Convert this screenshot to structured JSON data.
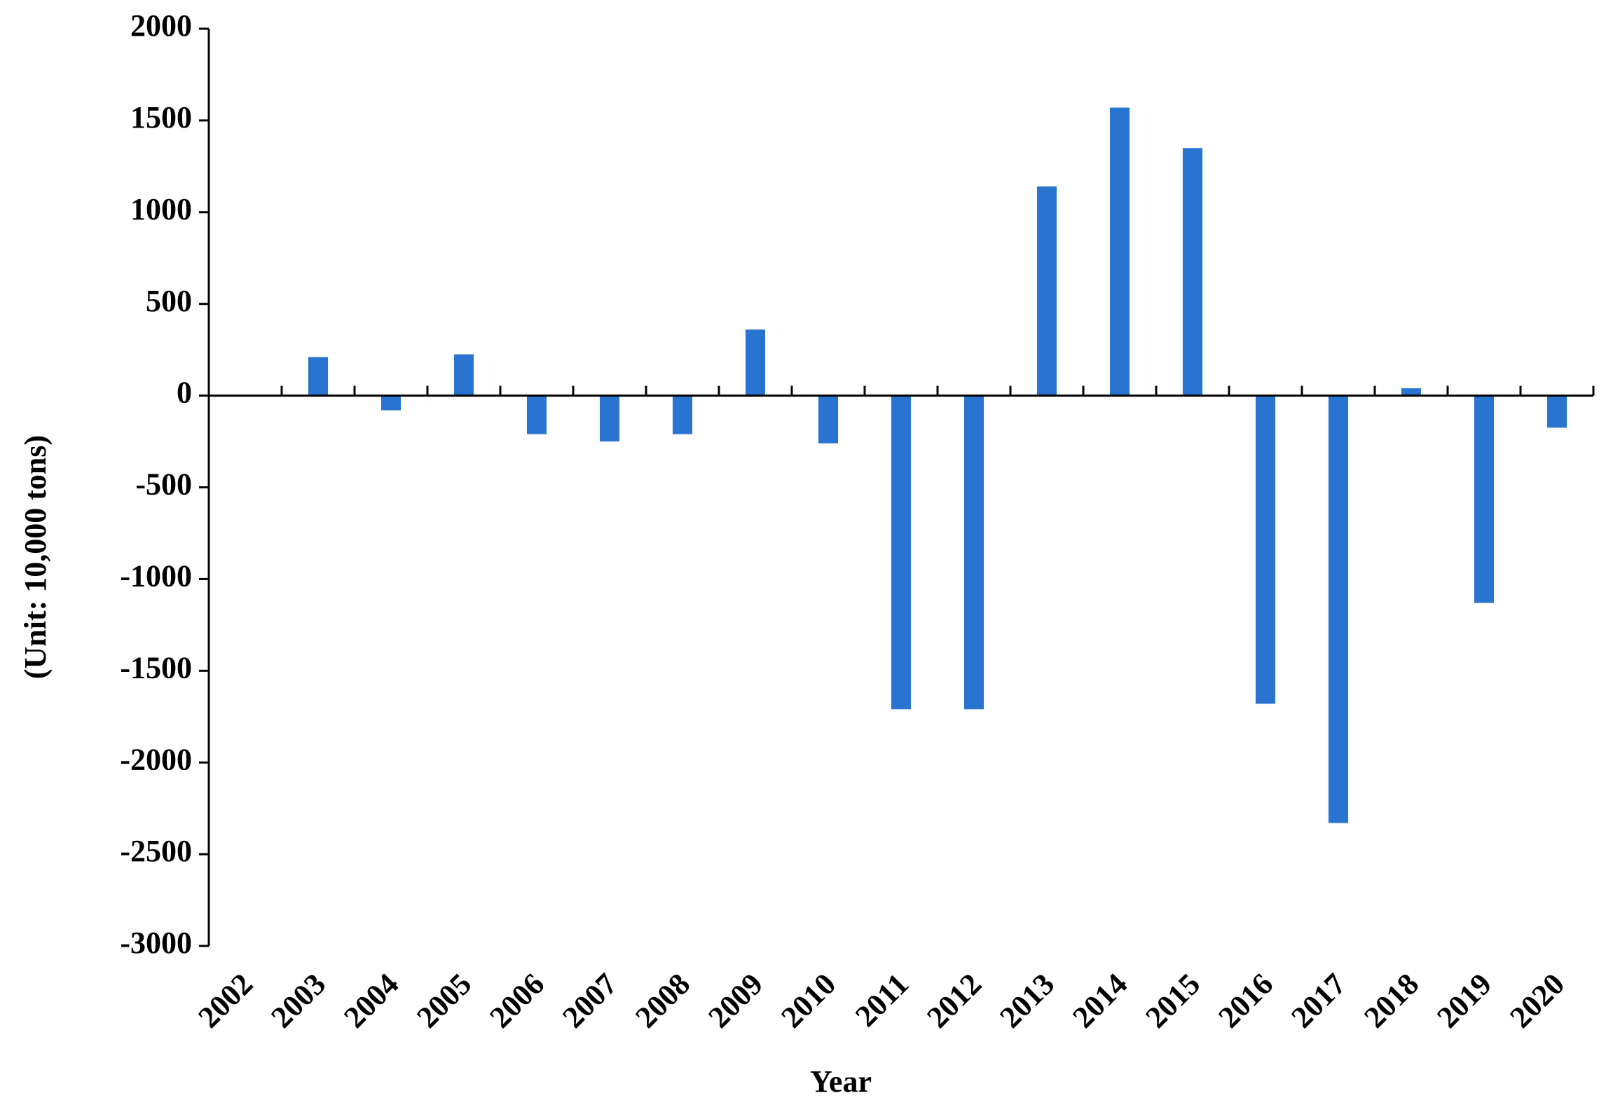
{
  "chart_data": {
    "type": "bar",
    "x_label": "Year",
    "y_label": "(Unit: 10,000 tons)",
    "categories": [
      "2002",
      "2003",
      "2004",
      "2005",
      "2006",
      "2007",
      "2008",
      "2009",
      "2010",
      "2011",
      "2012",
      "2013",
      "2014",
      "2015",
      "2016",
      "2017",
      "2018",
      "2019",
      "2020"
    ],
    "values": [
      0,
      210,
      -80,
      225,
      -210,
      -250,
      -210,
      360,
      -260,
      -1710,
      -1710,
      1140,
      1570,
      1350,
      -1680,
      -2330,
      40,
      -1130,
      -175
    ],
    "color": "#2874d0",
    "ylim": [
      -3000,
      2000
    ],
    "yticks": [
      -3000,
      -2500,
      -2000,
      -1500,
      -1000,
      -500,
      0,
      500,
      1000,
      1500,
      2000
    ],
    "grid": false
  }
}
